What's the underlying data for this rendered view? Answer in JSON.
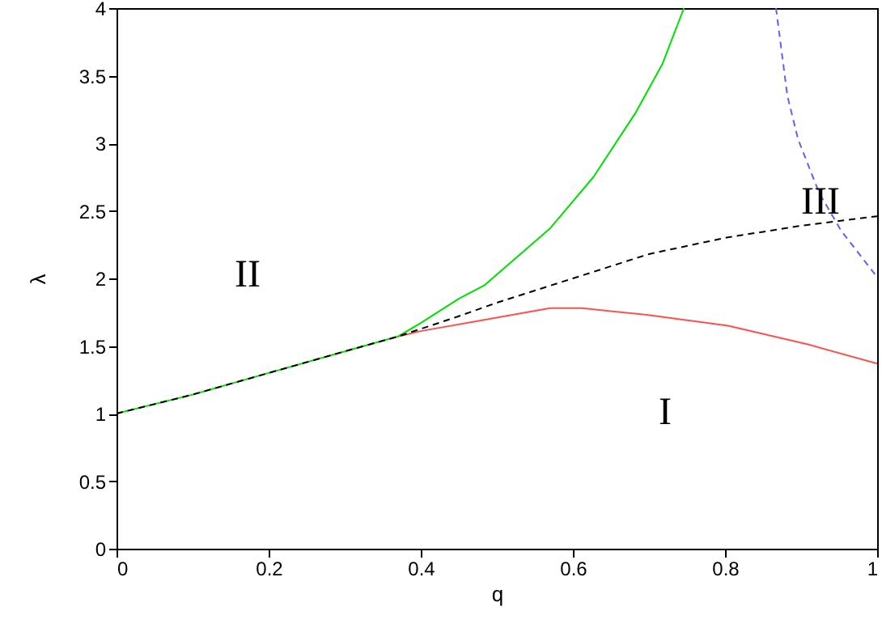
{
  "chart_data": {
    "type": "line",
    "xlabel": "q",
    "ylabel": "λ",
    "xlim": [
      0,
      1
    ],
    "ylim": [
      0,
      4
    ],
    "xticks": [
      0,
      0.2,
      0.4,
      0.6,
      0.8,
      1
    ],
    "yticks": [
      0,
      0.5,
      1,
      1.5,
      2,
      2.5,
      3,
      3.5,
      4
    ],
    "marker": "none",
    "series": [
      {
        "color": "#ff5050",
        "line_style": "solid",
        "x": [
          0.37,
          0.4,
          0.47,
          0.57,
          0.612,
          0.697,
          0.804,
          0.91,
          1
        ],
        "values": [
          1.57,
          1.61,
          1.68,
          1.78,
          1.78,
          1.73,
          1.65,
          1.51,
          1.37
        ]
      },
      {
        "color": "#00e000",
        "line_style": "solid",
        "x": [
          0,
          0.1,
          0.2,
          0.3,
          0.37,
          0.4,
          0.45,
          0.484,
          0.57,
          0.627,
          0.683,
          0.718,
          0.746
        ],
        "values": [
          1,
          1.14,
          1.3,
          1.46,
          1.57,
          1.67,
          1.85,
          1.95,
          2.37,
          2.75,
          3.23,
          3.59,
          4
        ]
      },
      {
        "color": "#000000",
        "line_style": "dashed",
        "x": [
          0,
          0.1,
          0.2,
          0.3,
          0.37,
          0.45,
          0.5,
          0.6,
          0.7,
          0.8,
          0.9,
          1
        ],
        "values": [
          1,
          1.14,
          1.3,
          1.46,
          1.57,
          1.72,
          1.82,
          2.0,
          2.18,
          2.3,
          2.39,
          2.46
        ]
      },
      {
        "color": "#6060ff",
        "line_style": "dashed",
        "x": [
          0.867,
          0.882,
          0.896,
          0.924,
          0.953,
          1
        ],
        "values": [
          4,
          3.35,
          3.03,
          2.63,
          2.35,
          2.01
        ]
      }
    ],
    "annotations": [
      "I",
      "II",
      "III"
    ]
  }
}
